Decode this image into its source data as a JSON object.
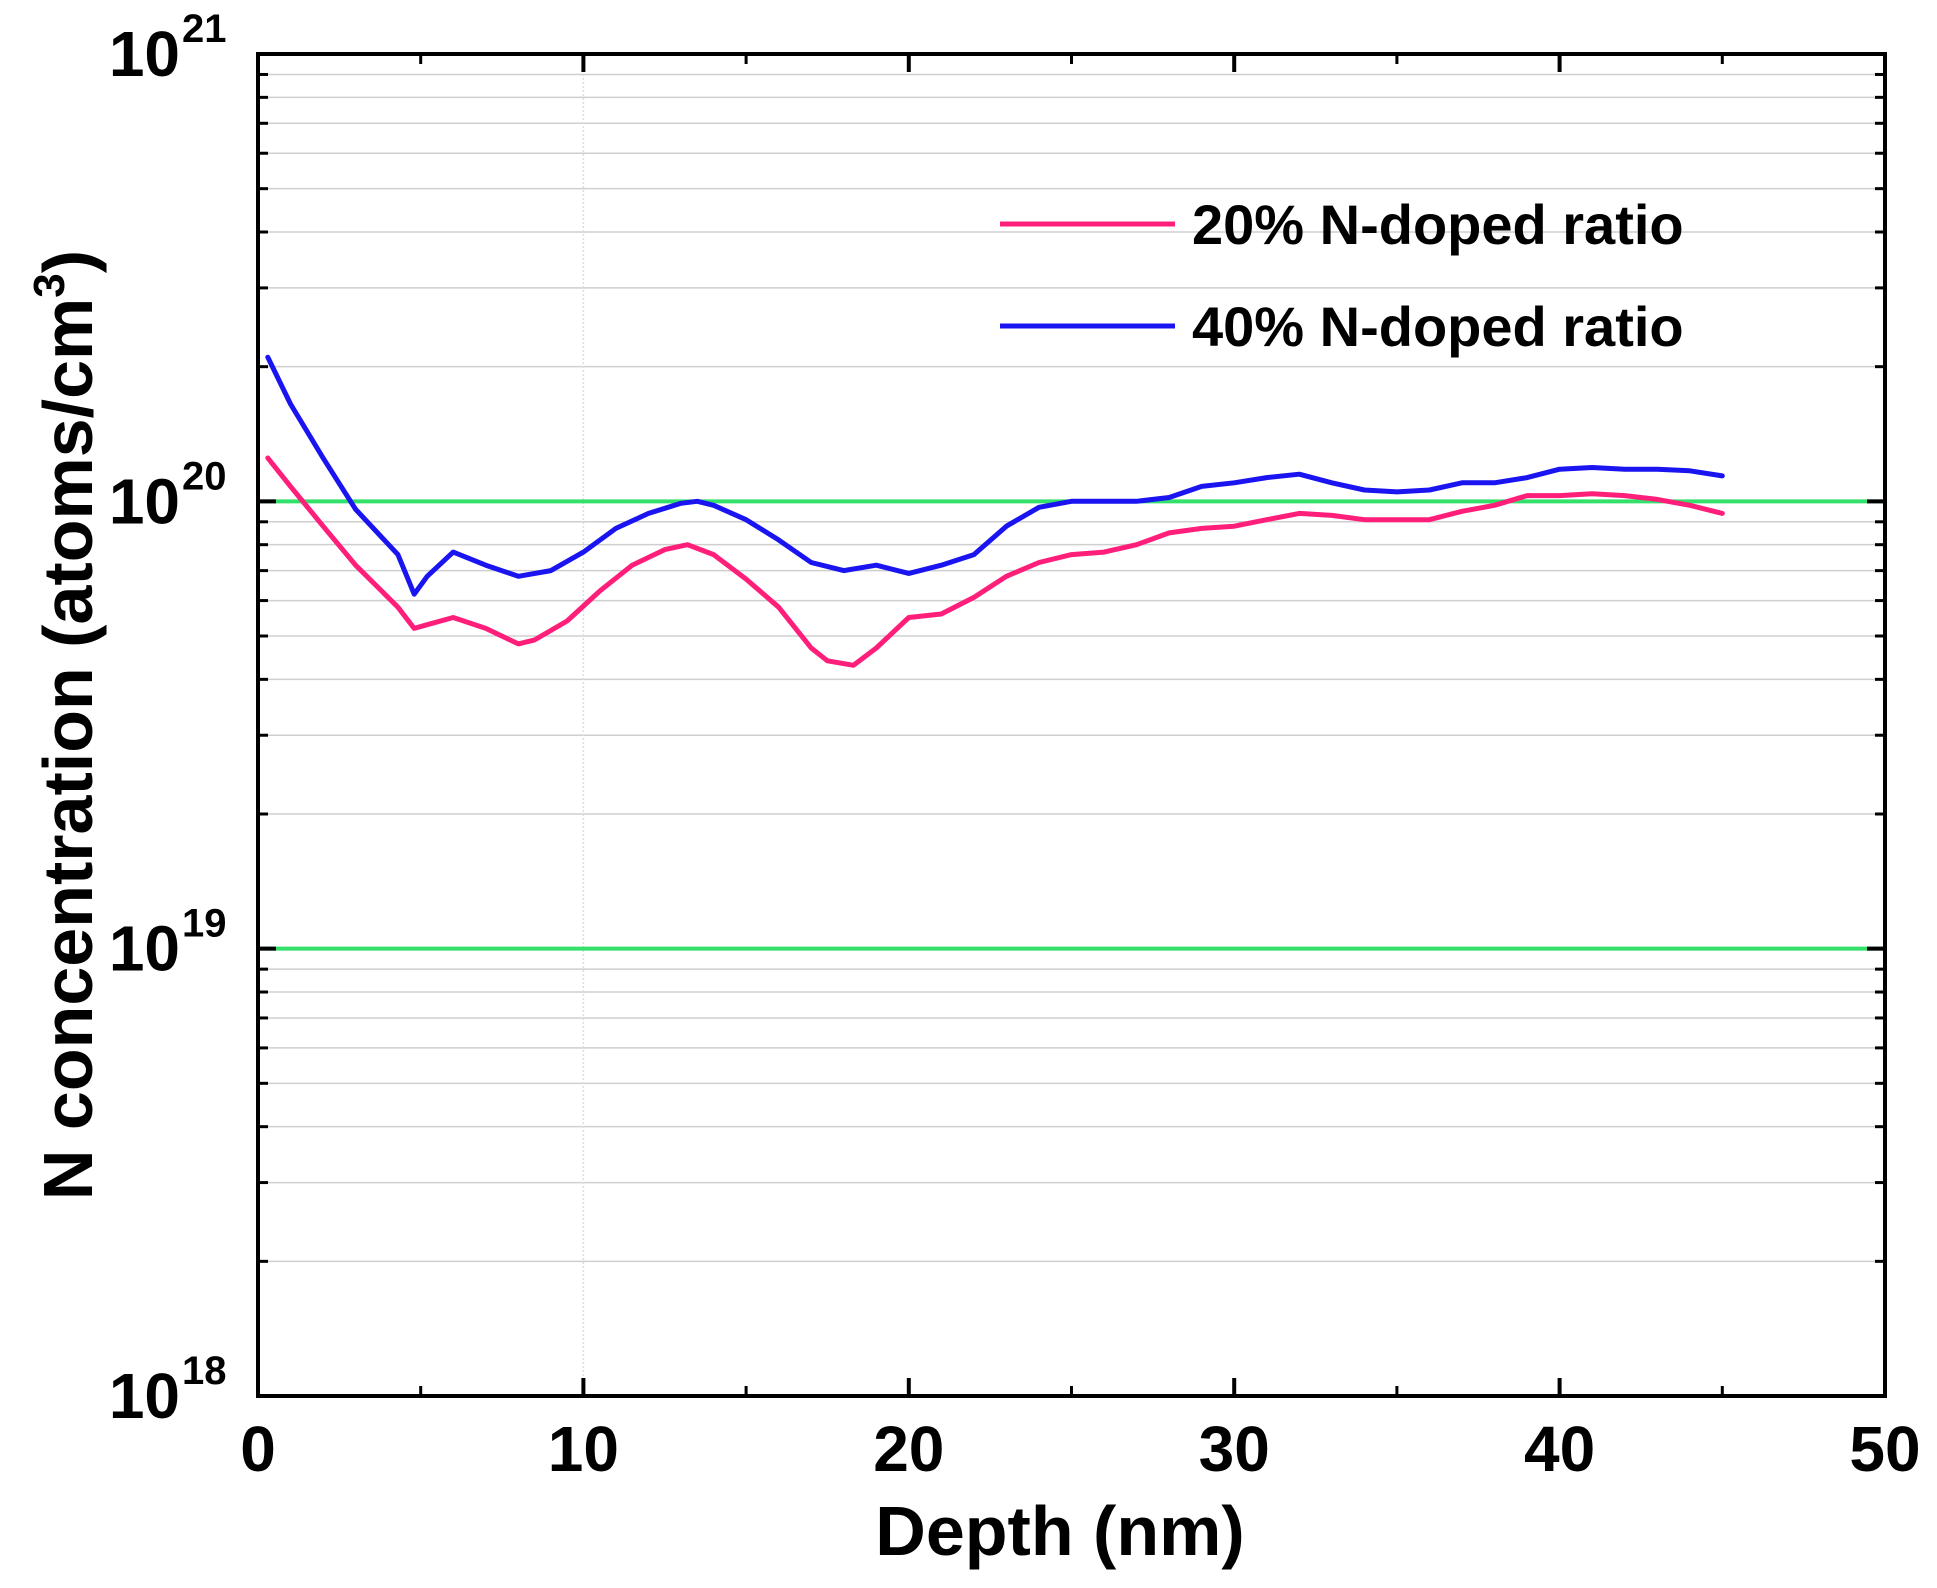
{
  "chart_data": {
    "type": "line",
    "title": "",
    "xlabel": "Depth (nm)",
    "ylabel_prefix": "N concentration (atoms/cm",
    "ylabel_sup": "3",
    "ylabel_suffix": ")",
    "xlim": [
      0,
      50
    ],
    "ylim": [
      1e+18,
      1e+21
    ],
    "yscale": "log",
    "grid": true,
    "xticks": [
      {
        "value": 0,
        "label": "0"
      },
      {
        "value": 10,
        "label": "10"
      },
      {
        "value": 20,
        "label": "20"
      },
      {
        "value": 30,
        "label": "30"
      },
      {
        "value": 40,
        "label": "40"
      },
      {
        "value": 50,
        "label": "50"
      }
    ],
    "yticks": [
      {
        "value": 1e+18,
        "base": "10",
        "exp": "18"
      },
      {
        "value": 1e+19,
        "base": "10",
        "exp": "19"
      },
      {
        "value": 1e+20,
        "base": "10",
        "exp": "20"
      },
      {
        "value": 1e+21,
        "base": "10",
        "exp": "21"
      }
    ],
    "reference_lines": [
      {
        "y": 1e+20,
        "color": "#33e06a"
      },
      {
        "y": 1e+19,
        "color": "#33e06a"
      }
    ],
    "legend": {
      "position": "top-right"
    },
    "series": [
      {
        "name": "20% N-doped ratio",
        "color": "#ff1f7a",
        "x": [
          0.3,
          1,
          2,
          3,
          4.3,
          4.8,
          5.2,
          6,
          7,
          8,
          8.5,
          9.5,
          10.5,
          11.5,
          12.5,
          13.2,
          14,
          15,
          16,
          17,
          17.5,
          18.3,
          19,
          20,
          21,
          22,
          23,
          24,
          25,
          26,
          27,
          28,
          29,
          30,
          31,
          32,
          33,
          34,
          35,
          36,
          37,
          38,
          39,
          40,
          41,
          42,
          43,
          44,
          45
        ],
        "values": [
          1.25e+20,
          1.08e+20,
          8.8e+19,
          7.2e+19,
          5.8e+19,
          5.2e+19,
          5.3e+19,
          5.5e+19,
          5.2e+19,
          4.8e+19,
          4.9e+19,
          5.4e+19,
          6.3e+19,
          7.2e+19,
          7.8e+19,
          8e+19,
          7.6e+19,
          6.7e+19,
          5.8e+19,
          4.7e+19,
          4.4e+19,
          4.3e+19,
          4.7e+19,
          5.5e+19,
          5.6e+19,
          6.1e+19,
          6.8e+19,
          7.3e+19,
          7.6e+19,
          7.7e+19,
          8e+19,
          8.5e+19,
          8.7e+19,
          8.8e+19,
          9.1e+19,
          9.4e+19,
          9.3e+19,
          9.1e+19,
          9.1e+19,
          9.1e+19,
          9.5e+19,
          9.8e+19,
          1.03e+20,
          1.03e+20,
          1.04e+20,
          1.03e+20,
          1.01e+20,
          9.8e+19,
          9.4e+19
        ]
      },
      {
        "name": "40% N-doped ratio",
        "color": "#1a14f0",
        "x": [
          0.3,
          1,
          2,
          3,
          4.3,
          4.8,
          5.2,
          6,
          7,
          8,
          9,
          10,
          11,
          12,
          13,
          13.5,
          14,
          15,
          16,
          17,
          18,
          19,
          20,
          21,
          22,
          23,
          24,
          25,
          26,
          27,
          28,
          29,
          30,
          31,
          32,
          33,
          34,
          35,
          36,
          37,
          38,
          39,
          40,
          41,
          42,
          43,
          44,
          45
        ],
        "values": [
          2.1e+20,
          1.65e+20,
          1.25e+20,
          9.6e+19,
          7.6e+19,
          6.2e+19,
          6.8e+19,
          7.7e+19,
          7.2e+19,
          6.8e+19,
          7e+19,
          7.7e+19,
          8.7e+19,
          9.4e+19,
          9.9e+19,
          1e+20,
          9.8e+19,
          9.1e+19,
          8.2e+19,
          7.3e+19,
          7e+19,
          7.2e+19,
          6.9e+19,
          7.2e+19,
          7.6e+19,
          8.8e+19,
          9.7e+19,
          1e+20,
          1e+20,
          1e+20,
          1.02e+20,
          1.08e+20,
          1.1e+20,
          1.13e+20,
          1.15e+20,
          1.1e+20,
          1.06e+20,
          1.05e+20,
          1.06e+20,
          1.1e+20,
          1.1e+20,
          1.13e+20,
          1.18e+20,
          1.19e+20,
          1.18e+20,
          1.18e+20,
          1.17e+20,
          1.14e+20
        ]
      }
    ]
  }
}
